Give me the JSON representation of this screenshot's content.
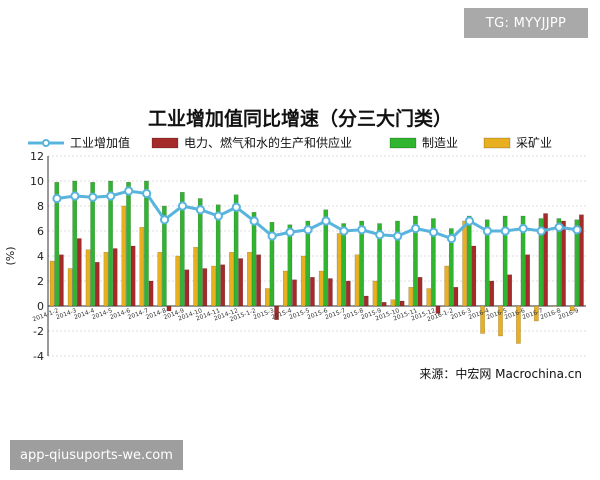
{
  "overlay": {
    "watermark": "TG: MYYJJPP",
    "app_tag": "app-qiusuports-we.com"
  },
  "colors": {
    "industry": "#58b4dc",
    "power": "#a52a2a",
    "manufacturing": "#2fb52f",
    "mining": "#e8b020"
  },
  "chart_data": {
    "type": "bar",
    "title": "工业增加值同比增速（分三大门类）",
    "ylabel": "(%)",
    "source": "来源：中宏网 Macrochina.cn",
    "ylim": [
      -4,
      12
    ],
    "yticks": [
      -4,
      -2,
      0,
      2,
      4,
      6,
      8,
      10,
      12
    ],
    "grid": true,
    "legend_position": "top",
    "categories": [
      "2014-1-2",
      "2014-3",
      "2014-4",
      "2014-5",
      "2014-6",
      "2014-7",
      "2014-8",
      "2014-9",
      "2014-10",
      "2014-11",
      "2014-12",
      "2015-1-2",
      "2015-3",
      "2015-4",
      "2015-5",
      "2015-6",
      "2015-7",
      "2015-8",
      "2015-9",
      "2015-10",
      "2015-11",
      "2015-12",
      "2016-1-2",
      "2016-3",
      "2016-4",
      "2016-5",
      "2016-6",
      "2016-7",
      "2016-8",
      "2016-9"
    ],
    "xtick_labels": [
      "2014-1-2",
      "2014-3",
      "2014-4",
      "2014-5",
      "2014-6",
      "2014-7",
      "2014-8",
      "2014-9",
      "2014-10",
      "2014-11",
      "2014-12",
      "2015-1-2",
      "2015-3",
      "2015-4",
      "2015-5",
      "2015-6",
      "2015-7",
      "2015-8",
      "2015-9",
      "2015-10",
      "2015-11",
      "2015-12",
      "2016-1-2",
      "2016-3",
      "2016-4",
      "2016-5",
      "2016-6",
      "2016-7",
      "2016-8",
      "2016-9"
    ],
    "series": [
      {
        "name": "工业增加值",
        "kind": "line",
        "values": [
          8.6,
          8.8,
          8.7,
          8.8,
          9.2,
          9.0,
          6.9,
          8.0,
          7.7,
          7.2,
          7.9,
          6.8,
          5.6,
          5.9,
          6.1,
          6.8,
          6.0,
          6.1,
          5.7,
          5.6,
          6.2,
          5.9,
          5.4,
          6.8,
          6.0,
          6.0,
          6.2,
          6.0,
          6.3,
          6.1
        ]
      },
      {
        "name": "电力、燃气和水的生产和供应业",
        "kind": "bar",
        "values": [
          4.1,
          5.4,
          3.5,
          4.6,
          4.8,
          2.0,
          -0.4,
          2.9,
          3.0,
          3.3,
          3.8,
          4.1,
          -1.1,
          2.1,
          2.3,
          2.2,
          2.0,
          0.8,
          0.3,
          0.4,
          2.3,
          -0.6,
          1.5,
          4.8,
          2.0,
          2.5,
          4.1,
          7.4,
          6.8,
          7.3
        ]
      },
      {
        "name": "制造业",
        "kind": "bar",
        "values": [
          9.9,
          10.0,
          9.9,
          10.0,
          9.9,
          10.0,
          8.0,
          9.1,
          8.6,
          8.1,
          8.9,
          7.5,
          6.7,
          6.5,
          6.8,
          7.7,
          6.6,
          6.8,
          6.6,
          6.8,
          7.2,
          7.0,
          6.2,
          7.2,
          6.9,
          7.2,
          7.2,
          7.0,
          7.0,
          6.9
        ]
      },
      {
        "name": "采矿业",
        "kind": "bar",
        "values": [
          3.6,
          3.0,
          4.5,
          4.3,
          8.0,
          6.3,
          4.3,
          4.0,
          4.7,
          3.2,
          4.3,
          4.3,
          1.4,
          2.8,
          4.0,
          2.8,
          5.8,
          4.1,
          2.0,
          0.5,
          1.5,
          1.4,
          3.2,
          6.8,
          -2.2,
          -2.4,
          -3.0,
          -1.2,
          0.0,
          -0.4
        ]
      }
    ]
  }
}
